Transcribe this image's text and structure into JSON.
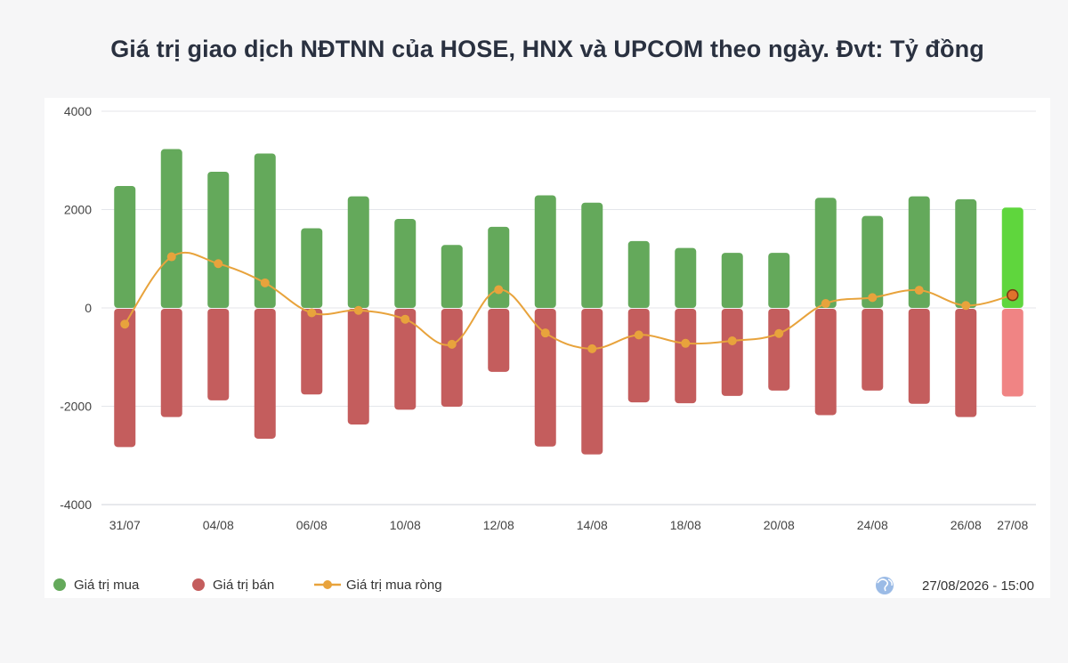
{
  "title": "Giá trị giao dịch NĐTNN của HOSE, HNX và UPCOM theo ngày. Đvt: Tỷ đồng",
  "timestamp": "27/08/2026 - 15:00",
  "chart_data": {
    "type": "bar",
    "title": "Giá trị giao dịch NĐTNN của HOSE, HNX và UPCOM theo ngày. Đvt: Tỷ đồng",
    "ylim": [
      -4000,
      4000
    ],
    "y_ticks": [
      "4000",
      "2000",
      "0",
      "-2000",
      "-4000"
    ],
    "x_tick_labels": [
      "31/07",
      "04/08",
      "06/08",
      "10/08",
      "12/08",
      "14/08",
      "18/08",
      "20/08",
      "24/08",
      "26/08",
      "27/08"
    ],
    "x_tick_indices": [
      0,
      2,
      4,
      6,
      8,
      10,
      12,
      14,
      16,
      18,
      19
    ],
    "grid": true,
    "legend_position": "bottom-left",
    "series": [
      {
        "name": "Giá trị mua",
        "color": "#64a95b",
        "highlight_color": "#5fd63d",
        "values": [
          2480,
          3230,
          2770,
          3140,
          1620,
          2270,
          1810,
          1280,
          1650,
          2290,
          2140,
          1360,
          1220,
          1120,
          1120,
          2240,
          1870,
          2270,
          2210,
          2040
        ]
      },
      {
        "name": "Giá trị bán",
        "color": "#c45d5d",
        "highlight_color": "#f08484",
        "values": [
          -2830,
          -2220,
          -1880,
          -2660,
          -1760,
          -2370,
          -2070,
          -2010,
          -1300,
          -2820,
          -2980,
          -1920,
          -1940,
          -1790,
          -1680,
          -2180,
          -1680,
          -1950,
          -2220,
          -1800
        ]
      },
      {
        "name": "Giá trị mua ròng",
        "color": "#e8a33c",
        "values": [
          -330,
          1040,
          900,
          510,
          -100,
          -50,
          -230,
          -740,
          370,
          -510,
          -830,
          -550,
          -720,
          -670,
          -520,
          90,
          210,
          360,
          50,
          260
        ]
      }
    ]
  }
}
